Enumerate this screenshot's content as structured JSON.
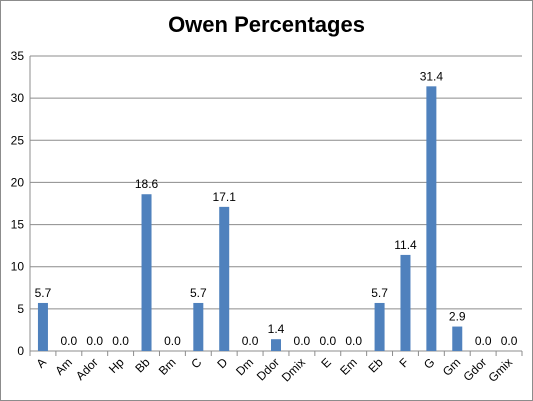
{
  "chart_data": {
    "type": "bar",
    "title": "Owen Percentages",
    "xlabel": "",
    "ylabel": "",
    "ylim": [
      0,
      35
    ],
    "yticks": [
      "0",
      "5",
      "10",
      "15",
      "20",
      "25",
      "30",
      "35"
    ],
    "grid": true,
    "legend": "none",
    "bar_color": "#4f81bd",
    "categories": [
      "A",
      "Am",
      "Ador",
      "Hp",
      "Bb",
      "Bm",
      "C",
      "D",
      "Dm",
      "Ddor",
      "Dmix",
      "E",
      "Em",
      "Eb",
      "F",
      "G",
      "Gm",
      "Gdor",
      "Gmix"
    ],
    "values": [
      5.7,
      0.0,
      0.0,
      0.0,
      18.6,
      0.0,
      5.7,
      17.1,
      0.0,
      1.4,
      0.0,
      0.0,
      0.0,
      5.7,
      11.4,
      31.4,
      2.9,
      0.0,
      0.0
    ],
    "data_labels": [
      "5.7",
      "0.0",
      "0.0",
      "0.0",
      "18.6",
      "0.0",
      "5.7",
      "17.1",
      "0.0",
      "1.4",
      "0.0",
      "0.0",
      "0.0",
      "5.7",
      "11.4",
      "31.4",
      "2.9",
      "0.0",
      "0.0"
    ]
  }
}
